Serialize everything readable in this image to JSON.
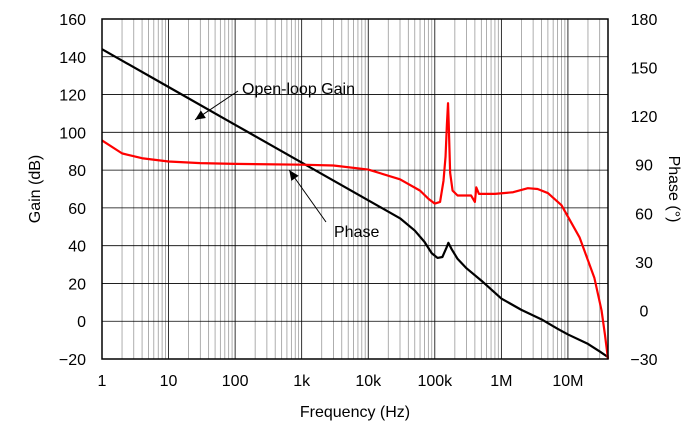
{
  "chart_data": {
    "type": "line",
    "x_scale": "log",
    "xlim": [
      1,
      40000000
    ],
    "ylim": [
      -20,
      160
    ],
    "y2lim": [
      -30,
      180
    ],
    "grid": true,
    "xlabel": "Frequency (Hz)",
    "ylabel": "Gain (dB)",
    "y2label": "Phase (°)",
    "x_ticks": [
      {
        "value": 1,
        "label": "1"
      },
      {
        "value": 10,
        "label": "10"
      },
      {
        "value": 100,
        "label": "100"
      },
      {
        "value": 1000,
        "label": "1k"
      },
      {
        "value": 10000,
        "label": "10k"
      },
      {
        "value": 100000,
        "label": "100k"
      },
      {
        "value": 1000000,
        "label": "1M"
      },
      {
        "value": 10000000,
        "label": "10M"
      }
    ],
    "y_ticks": [
      -20,
      0,
      20,
      40,
      60,
      80,
      100,
      120,
      140,
      160
    ],
    "y2_ticks": [
      -30,
      0,
      30,
      60,
      90,
      120,
      150,
      180
    ],
    "series": [
      {
        "name": "Open-loop Gain",
        "axis": "left",
        "color": "#000000",
        "points": [
          [
            1,
            144
          ],
          [
            10,
            124
          ],
          [
            100,
            104
          ],
          [
            1000,
            84
          ],
          [
            10000,
            64
          ],
          [
            30000,
            54.5
          ],
          [
            50000,
            48
          ],
          [
            70000,
            42
          ],
          [
            90000,
            36
          ],
          [
            110000,
            33.5
          ],
          [
            130000,
            34
          ],
          [
            150000,
            39
          ],
          [
            160000,
            41.5
          ],
          [
            180000,
            38
          ],
          [
            220000,
            33
          ],
          [
            300000,
            28
          ],
          [
            500000,
            21.5
          ],
          [
            1000000,
            12
          ],
          [
            2000000,
            6
          ],
          [
            4000000,
            1
          ],
          [
            7000000,
            -4
          ],
          [
            10000000,
            -7
          ],
          [
            20000000,
            -12
          ],
          [
            30000000,
            -16
          ],
          [
            40000000,
            -19
          ]
        ]
      },
      {
        "name": "Phase",
        "axis": "right",
        "color": "#ff0000",
        "points": [
          [
            1,
            105
          ],
          [
            2,
            97
          ],
          [
            4,
            94
          ],
          [
            10,
            92
          ],
          [
            30,
            91
          ],
          [
            100,
            90.5
          ],
          [
            1000,
            90
          ],
          [
            3000,
            89.5
          ],
          [
            10000,
            87
          ],
          [
            30000,
            81
          ],
          [
            60000,
            74
          ],
          [
            80000,
            69
          ],
          [
            100000,
            66
          ],
          [
            120000,
            67
          ],
          [
            135000,
            80
          ],
          [
            145000,
            95
          ],
          [
            152000,
            115
          ],
          [
            158000,
            128
          ],
          [
            162000,
            115
          ],
          [
            170000,
            85
          ],
          [
            185000,
            74
          ],
          [
            220000,
            71
          ],
          [
            350000,
            71
          ],
          [
            400000,
            67
          ],
          [
            420000,
            76
          ],
          [
            460000,
            72
          ],
          [
            800000,
            72
          ],
          [
            1500000,
            73
          ],
          [
            2500000,
            75.5
          ],
          [
            3500000,
            75
          ],
          [
            5000000,
            72.5
          ],
          [
            8000000,
            65
          ],
          [
            15000000,
            45
          ],
          [
            25000000,
            20
          ],
          [
            32000000,
            0
          ],
          [
            36000000,
            -15
          ],
          [
            40000000,
            -30
          ]
        ]
      }
    ],
    "annotations": [
      {
        "text": "Open-loop Gain",
        "target_series": "Open-loop Gain"
      },
      {
        "text": "Phase",
        "target_series": "Phase"
      }
    ]
  }
}
